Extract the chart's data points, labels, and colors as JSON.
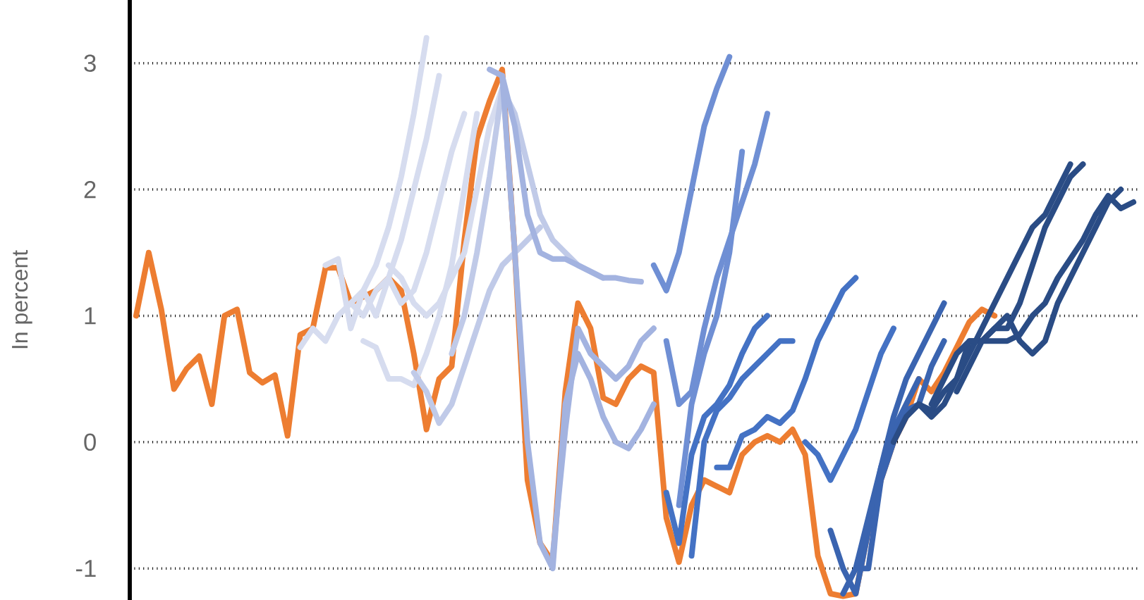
{
  "chart_data": {
    "type": "line",
    "ylabel": "In percent",
    "grid": "y",
    "tick_labels": "y",
    "ylim": [
      -1.25,
      3.5
    ],
    "yticks": [
      -1,
      0,
      1,
      2,
      3
    ],
    "categories": [
      null,
      null,
      null,
      null,
      null,
      null,
      null,
      null,
      null,
      null,
      null,
      null,
      null,
      null,
      null,
      null,
      null,
      null,
      null,
      null,
      null,
      null,
      null,
      null,
      null,
      null,
      null,
      null,
      null,
      null,
      null,
      null,
      null,
      null,
      null,
      null,
      null,
      null,
      null,
      null,
      null,
      null,
      null,
      null,
      null,
      null,
      null,
      null,
      null,
      null,
      null,
      null,
      null,
      null,
      null,
      null,
      null,
      null,
      null,
      null,
      null,
      null,
      null,
      null,
      null,
      null,
      null,
      null,
      null,
      null,
      null,
      null,
      null,
      null,
      null,
      null,
      null,
      null,
      null,
      null
    ],
    "series": [
      {
        "color": "#ed7d31",
        "values": [
          1.0,
          1.5,
          1.05,
          0.42,
          0.58,
          0.68,
          0.3,
          1.0,
          1.05,
          0.55,
          0.47,
          0.53,
          0.05,
          0.85,
          0.9,
          1.38,
          1.38,
          1.1,
          1.15,
          1.2,
          1.3,
          1.2,
          0.7,
          0.1,
          0.5,
          0.6,
          1.6,
          2.4,
          2.7,
          2.95,
          1.5,
          -0.3,
          -0.8,
          -0.95,
          0.4,
          1.1,
          0.9,
          0.35,
          0.3,
          0.5,
          0.6,
          0.55,
          -0.6,
          -0.95,
          -0.5,
          -0.3,
          -0.35,
          -0.4,
          -0.1,
          0.0,
          0.05,
          0.0,
          0.1,
          -0.1,
          -0.9,
          -1.2,
          -1.22,
          -1.2,
          -0.7,
          -0.3,
          0.0,
          0.2,
          0.5,
          0.4,
          0.55,
          0.75,
          0.95,
          1.05,
          1.0,
          null,
          null,
          null,
          null,
          null,
          null,
          null,
          null,
          null,
          null,
          null
        ]
      },
      {
        "color": "#d6dcef",
        "values": [
          null,
          null,
          null,
          null,
          null,
          null,
          null,
          null,
          null,
          null,
          null,
          null,
          null,
          0.75,
          0.9,
          0.8,
          1.0,
          1.1,
          1.2,
          1.4,
          1.7,
          2.1,
          2.6,
          3.2,
          null,
          null,
          null,
          null,
          null,
          null,
          null,
          null,
          null,
          null,
          null,
          null,
          null,
          null,
          null,
          null,
          null,
          null,
          null,
          null,
          null,
          null,
          null,
          null,
          null,
          null,
          null,
          null,
          null,
          null,
          null,
          null,
          null,
          null,
          null,
          null,
          null,
          null,
          null,
          null,
          null,
          null,
          null,
          null,
          null,
          null,
          null,
          null,
          null,
          null,
          null,
          null,
          null,
          null,
          null,
          null
        ]
      },
      {
        "color": "#d6dcef",
        "values": [
          null,
          null,
          null,
          null,
          null,
          null,
          null,
          null,
          null,
          null,
          null,
          null,
          null,
          null,
          null,
          1.4,
          1.45,
          0.9,
          1.2,
          1.0,
          1.3,
          1.6,
          2.0,
          2.4,
          2.9,
          null,
          null,
          null,
          null,
          null,
          null,
          null,
          null,
          null,
          null,
          null,
          null,
          null,
          null,
          null,
          null,
          null,
          null,
          null,
          null,
          null,
          null,
          null,
          null,
          null,
          null,
          null,
          null,
          null,
          null,
          null,
          null,
          null,
          null,
          null,
          null,
          null,
          null,
          null,
          null,
          null,
          null,
          null,
          null,
          null,
          null,
          null,
          null,
          null,
          null,
          null,
          null,
          null,
          null,
          null
        ]
      },
      {
        "color": "#d6dcef",
        "values": [
          null,
          null,
          null,
          null,
          null,
          null,
          null,
          null,
          null,
          null,
          null,
          null,
          null,
          null,
          null,
          null,
          null,
          1.1,
          1.0,
          1.2,
          1.3,
          1.1,
          1.2,
          1.5,
          1.9,
          2.3,
          2.6,
          null,
          null,
          null,
          null,
          null,
          null,
          null,
          null,
          null,
          null,
          null,
          null,
          null,
          null,
          null,
          null,
          null,
          null,
          null,
          null,
          null,
          null,
          null,
          null,
          null,
          null,
          null,
          null,
          null,
          null,
          null,
          null,
          null,
          null,
          null,
          null,
          null,
          null,
          null,
          null,
          null,
          null,
          null,
          null,
          null,
          null,
          null,
          null,
          null,
          null,
          null,
          null,
          null
        ]
      },
      {
        "color": "#d6dcef",
        "values": [
          null,
          null,
          null,
          null,
          null,
          null,
          null,
          null,
          null,
          null,
          null,
          null,
          null,
          null,
          null,
          null,
          null,
          null,
          0.8,
          0.75,
          0.5,
          0.5,
          0.45,
          0.7,
          1.0,
          1.4,
          2.0,
          2.6,
          null,
          null,
          null,
          null,
          null,
          null,
          null,
          null,
          null,
          null,
          null,
          null,
          null,
          null,
          null,
          null,
          null,
          null,
          null,
          null,
          null,
          null,
          null,
          null,
          null,
          null,
          null,
          null,
          null,
          null,
          null,
          null,
          null,
          null,
          null,
          null,
          null,
          null,
          null,
          null,
          null,
          null,
          null,
          null,
          null,
          null,
          null,
          null,
          null,
          null,
          null,
          null
        ]
      },
      {
        "color": "#d6dcef",
        "values": [
          null,
          null,
          null,
          null,
          null,
          null,
          null,
          null,
          null,
          null,
          null,
          null,
          null,
          null,
          null,
          null,
          null,
          null,
          null,
          null,
          1.4,
          1.3,
          1.1,
          1.0,
          1.1,
          1.3,
          1.5,
          2.0,
          2.5,
          2.8,
          null,
          null,
          null,
          null,
          null,
          null,
          null,
          null,
          null,
          null,
          null,
          null,
          null,
          null,
          null,
          null,
          null,
          null,
          null,
          null,
          null,
          null,
          null,
          null,
          null,
          null,
          null,
          null,
          null,
          null,
          null,
          null,
          null,
          null,
          null,
          null,
          null,
          null,
          null,
          null,
          null,
          null,
          null,
          null,
          null,
          null,
          null,
          null,
          null,
          null
        ]
      },
      {
        "color": "#c0cae8",
        "values": [
          null,
          null,
          null,
          null,
          null,
          null,
          null,
          null,
          null,
          null,
          null,
          null,
          null,
          null,
          null,
          null,
          null,
          null,
          null,
          null,
          null,
          null,
          0.55,
          0.4,
          0.15,
          0.3,
          0.6,
          0.9,
          1.2,
          1.4,
          1.5,
          1.6,
          1.7,
          null,
          null,
          null,
          null,
          null,
          null,
          null,
          null,
          null,
          null,
          null,
          null,
          null,
          null,
          null,
          null,
          null,
          null,
          null,
          null,
          null,
          null,
          null,
          null,
          null,
          null,
          null,
          null,
          null,
          null,
          null,
          null,
          null,
          null,
          null,
          null,
          null,
          null,
          null,
          null,
          null,
          null,
          null,
          null,
          null,
          null,
          null
        ]
      },
      {
        "color": "#c0cae8",
        "values": [
          null,
          null,
          null,
          null,
          null,
          null,
          null,
          null,
          null,
          null,
          null,
          null,
          null,
          null,
          null,
          null,
          null,
          null,
          null,
          null,
          null,
          null,
          null,
          null,
          null,
          0.7,
          1.0,
          1.5,
          2.1,
          2.8,
          2.6,
          2.2,
          1.8,
          1.6,
          1.5,
          1.4,
          1.35,
          1.3,
          null,
          null,
          null,
          null,
          null,
          null,
          null,
          null,
          null,
          null,
          null,
          null,
          null,
          null,
          null,
          null,
          null,
          null,
          null,
          null,
          null,
          null,
          null,
          null,
          null,
          null,
          null,
          null,
          null,
          null,
          null,
          null,
          null,
          null,
          null,
          null,
          null,
          null,
          null,
          null,
          null,
          null
        ]
      },
      {
        "color": "#a3b3e0",
        "values": [
          null,
          null,
          null,
          null,
          null,
          null,
          null,
          null,
          null,
          null,
          null,
          null,
          null,
          null,
          null,
          null,
          null,
          null,
          null,
          null,
          null,
          null,
          null,
          null,
          null,
          null,
          null,
          null,
          2.95,
          2.9,
          2.5,
          1.8,
          1.5,
          1.45,
          1.45,
          1.4,
          1.35,
          1.3,
          1.3,
          1.28,
          1.27,
          null,
          null,
          null,
          null,
          null,
          null,
          null,
          null,
          null,
          null,
          null,
          null,
          null,
          null,
          null,
          null,
          null,
          null,
          null,
          null,
          null,
          null,
          null,
          null,
          null,
          null,
          null,
          null,
          null,
          null,
          null,
          null,
          null,
          null,
          null,
          null,
          null,
          null,
          null
        ]
      },
      {
        "color": "#a3b3e0",
        "values": [
          null,
          null,
          null,
          null,
          null,
          null,
          null,
          null,
          null,
          null,
          null,
          null,
          null,
          null,
          null,
          null,
          null,
          null,
          null,
          null,
          null,
          null,
          null,
          null,
          null,
          null,
          null,
          null,
          null,
          2.9,
          1.5,
          0.0,
          -0.8,
          -1.0,
          0.3,
          0.7,
          0.5,
          0.2,
          0.0,
          -0.05,
          0.1,
          0.3,
          null,
          null,
          null,
          null,
          null,
          null,
          null,
          null,
          null,
          null,
          null,
          null,
          null,
          null,
          null,
          null,
          null,
          null,
          null,
          null,
          null,
          null,
          null,
          null,
          null,
          null,
          null,
          null,
          null,
          null,
          null,
          null,
          null,
          null,
          null,
          null,
          null,
          null
        ]
      },
      {
        "color": "#a3b3e0",
        "values": [
          null,
          null,
          null,
          null,
          null,
          null,
          null,
          null,
          null,
          null,
          null,
          null,
          null,
          null,
          null,
          null,
          null,
          null,
          null,
          null,
          null,
          null,
          null,
          null,
          null,
          null,
          null,
          null,
          null,
          null,
          null,
          null,
          null,
          -0.9,
          0.1,
          0.9,
          0.7,
          0.6,
          0.5,
          0.6,
          0.8,
          0.9,
          null,
          null,
          null,
          null,
          null,
          null,
          null,
          null,
          null,
          null,
          null,
          null,
          null,
          null,
          null,
          null,
          null,
          null,
          null,
          null,
          null,
          null,
          null,
          null,
          null,
          null,
          null,
          null,
          null,
          null,
          null,
          null,
          null,
          null,
          null,
          null,
          null,
          null
        ]
      },
      {
        "color": "#6f8fd4",
        "values": [
          null,
          null,
          null,
          null,
          null,
          null,
          null,
          null,
          null,
          null,
          null,
          null,
          null,
          null,
          null,
          null,
          null,
          null,
          null,
          null,
          null,
          null,
          null,
          null,
          null,
          null,
          null,
          null,
          null,
          null,
          null,
          null,
          null,
          null,
          null,
          null,
          null,
          null,
          null,
          null,
          null,
          1.4,
          1.2,
          1.5,
          2.0,
          2.5,
          2.8,
          3.05,
          null,
          null,
          null,
          null,
          null,
          null,
          null,
          null,
          null,
          null,
          null,
          null,
          null,
          null,
          null,
          null,
          null,
          null,
          null,
          null,
          null,
          null,
          null,
          null,
          null,
          null,
          null,
          null,
          null,
          null,
          null,
          null
        ]
      },
      {
        "color": "#6f8fd4",
        "values": [
          null,
          null,
          null,
          null,
          null,
          null,
          null,
          null,
          null,
          null,
          null,
          null,
          null,
          null,
          null,
          null,
          null,
          null,
          null,
          null,
          null,
          null,
          null,
          null,
          null,
          null,
          null,
          null,
          null,
          null,
          null,
          null,
          null,
          null,
          null,
          null,
          null,
          null,
          null,
          null,
          null,
          null,
          0.8,
          0.3,
          0.4,
          0.9,
          1.3,
          1.6,
          1.9,
          2.2,
          2.6,
          null,
          null,
          null,
          null,
          null,
          null,
          null,
          null,
          null,
          null,
          null,
          null,
          null,
          null,
          null,
          null,
          null,
          null,
          null,
          null,
          null,
          null,
          null,
          null,
          null,
          null,
          null,
          null,
          null
        ]
      },
      {
        "color": "#6f8fd4",
        "values": [
          null,
          null,
          null,
          null,
          null,
          null,
          null,
          null,
          null,
          null,
          null,
          null,
          null,
          null,
          null,
          null,
          null,
          null,
          null,
          null,
          null,
          null,
          null,
          null,
          null,
          null,
          null,
          null,
          null,
          null,
          null,
          null,
          null,
          null,
          null,
          null,
          null,
          null,
          null,
          null,
          null,
          null,
          null,
          -0.5,
          0.3,
          0.7,
          1.0,
          1.5,
          2.3,
          null,
          null,
          null,
          null,
          null,
          null,
          null,
          null,
          null,
          null,
          null,
          null,
          null,
          null,
          null,
          null,
          null,
          null,
          null,
          null,
          null,
          null,
          null,
          null,
          null,
          null,
          null,
          null,
          null,
          null,
          null
        ]
      },
      {
        "color": "#4472c4",
        "values": [
          null,
          null,
          null,
          null,
          null,
          null,
          null,
          null,
          null,
          null,
          null,
          null,
          null,
          null,
          null,
          null,
          null,
          null,
          null,
          null,
          null,
          null,
          null,
          null,
          null,
          null,
          null,
          null,
          null,
          null,
          null,
          null,
          null,
          null,
          null,
          null,
          null,
          null,
          null,
          null,
          null,
          null,
          -0.4,
          -0.8,
          -0.1,
          0.2,
          0.3,
          0.45,
          0.7,
          0.9,
          1.0,
          null,
          null,
          null,
          null,
          null,
          null,
          null,
          null,
          null,
          null,
          null,
          null,
          null,
          null,
          null,
          null,
          null,
          null,
          null,
          null,
          null,
          null,
          null,
          null,
          null,
          null,
          null,
          null,
          null
        ]
      },
      {
        "color": "#4472c4",
        "values": [
          null,
          null,
          null,
          null,
          null,
          null,
          null,
          null,
          null,
          null,
          null,
          null,
          null,
          null,
          null,
          null,
          null,
          null,
          null,
          null,
          null,
          null,
          null,
          null,
          null,
          null,
          null,
          null,
          null,
          null,
          null,
          null,
          null,
          null,
          null,
          null,
          null,
          null,
          null,
          null,
          null,
          null,
          null,
          null,
          -0.9,
          0.0,
          0.25,
          0.35,
          0.5,
          0.6,
          0.7,
          0.8,
          0.8,
          null,
          null,
          null,
          null,
          null,
          null,
          null,
          null,
          null,
          null,
          null,
          null,
          null,
          null,
          null,
          null,
          null,
          null,
          null,
          null,
          null,
          null,
          null,
          null,
          null,
          null,
          null
        ]
      },
      {
        "color": "#4472c4",
        "values": [
          null,
          null,
          null,
          null,
          null,
          null,
          null,
          null,
          null,
          null,
          null,
          null,
          null,
          null,
          null,
          null,
          null,
          null,
          null,
          null,
          null,
          null,
          null,
          null,
          null,
          null,
          null,
          null,
          null,
          null,
          null,
          null,
          null,
          null,
          null,
          null,
          null,
          null,
          null,
          null,
          null,
          null,
          null,
          null,
          null,
          null,
          -0.2,
          -0.2,
          0.05,
          0.1,
          0.2,
          0.15,
          0.25,
          0.5,
          0.8,
          1.0,
          1.2,
          1.3,
          null,
          null,
          null,
          null,
          null,
          null,
          null,
          null,
          null,
          null,
          null,
          null,
          null,
          null,
          null,
          null,
          null,
          null,
          null,
          null,
          null,
          null
        ]
      },
      {
        "color": "#4472c4",
        "values": [
          null,
          null,
          null,
          null,
          null,
          null,
          null,
          null,
          null,
          null,
          null,
          null,
          null,
          null,
          null,
          null,
          null,
          null,
          null,
          null,
          null,
          null,
          null,
          null,
          null,
          null,
          null,
          null,
          null,
          null,
          null,
          null,
          null,
          null,
          null,
          null,
          null,
          null,
          null,
          null,
          null,
          null,
          null,
          null,
          null,
          null,
          null,
          null,
          null,
          null,
          null,
          null,
          null,
          0.0,
          -0.1,
          -0.3,
          -0.1,
          0.1,
          0.4,
          0.7,
          0.9,
          null,
          null,
          null,
          null,
          null,
          null,
          null,
          null,
          null,
          null,
          null,
          null,
          null,
          null,
          null,
          null,
          null,
          null,
          null
        ]
      },
      {
        "color": "#3a64b0",
        "values": [
          null,
          null,
          null,
          null,
          null,
          null,
          null,
          null,
          null,
          null,
          null,
          null,
          null,
          null,
          null,
          null,
          null,
          null,
          null,
          null,
          null,
          null,
          null,
          null,
          null,
          null,
          null,
          null,
          null,
          null,
          null,
          null,
          null,
          null,
          null,
          null,
          null,
          null,
          null,
          null,
          null,
          null,
          null,
          null,
          null,
          null,
          null,
          null,
          null,
          null,
          null,
          null,
          null,
          null,
          null,
          -0.7,
          -1.0,
          -1.2,
          -0.7,
          -0.2,
          0.1,
          0.3,
          0.5,
          null,
          null,
          null,
          null,
          null,
          null,
          null,
          null,
          null,
          null,
          null,
          null,
          null,
          null,
          null,
          null,
          null
        ]
      },
      {
        "color": "#3a64b0",
        "values": [
          null,
          null,
          null,
          null,
          null,
          null,
          null,
          null,
          null,
          null,
          null,
          null,
          null,
          null,
          null,
          null,
          null,
          null,
          null,
          null,
          null,
          null,
          null,
          null,
          null,
          null,
          null,
          null,
          null,
          null,
          null,
          null,
          null,
          null,
          null,
          null,
          null,
          null,
          null,
          null,
          null,
          null,
          null,
          null,
          null,
          null,
          null,
          null,
          null,
          null,
          null,
          null,
          null,
          null,
          null,
          null,
          -1.2,
          -1.0,
          -0.6,
          -0.2,
          0.2,
          0.5,
          0.7,
          0.9,
          1.1,
          null,
          null,
          null,
          null,
          null,
          null,
          null,
          null,
          null,
          null,
          null,
          null,
          null,
          null,
          null
        ]
      },
      {
        "color": "#3a64b0",
        "values": [
          null,
          null,
          null,
          null,
          null,
          null,
          null,
          null,
          null,
          null,
          null,
          null,
          null,
          null,
          null,
          null,
          null,
          null,
          null,
          null,
          null,
          null,
          null,
          null,
          null,
          null,
          null,
          null,
          null,
          null,
          null,
          null,
          null,
          null,
          null,
          null,
          null,
          null,
          null,
          null,
          null,
          null,
          null,
          null,
          null,
          null,
          null,
          null,
          null,
          null,
          null,
          null,
          null,
          null,
          null,
          null,
          null,
          -1.0,
          -1.0,
          -0.3,
          0.0,
          0.25,
          0.3,
          0.6,
          0.8,
          null,
          null,
          null,
          null,
          null,
          null,
          null,
          null,
          null,
          null,
          null,
          null,
          null,
          null,
          null
        ]
      },
      {
        "color": "#2a4c85",
        "values": [
          null,
          null,
          null,
          null,
          null,
          null,
          null,
          null,
          null,
          null,
          null,
          null,
          null,
          null,
          null,
          null,
          null,
          null,
          null,
          null,
          null,
          null,
          null,
          null,
          null,
          null,
          null,
          null,
          null,
          null,
          null,
          null,
          null,
          null,
          null,
          null,
          null,
          null,
          null,
          null,
          null,
          null,
          null,
          null,
          null,
          null,
          null,
          null,
          null,
          null,
          null,
          null,
          null,
          null,
          null,
          null,
          null,
          null,
          null,
          null,
          0.0,
          0.2,
          0.3,
          0.25,
          0.4,
          0.5,
          0.7,
          0.9,
          1.1,
          1.3,
          1.5,
          1.7,
          1.8,
          2.0,
          2.2,
          null,
          null,
          null,
          null,
          null
        ]
      },
      {
        "color": "#2a4c85",
        "values": [
          null,
          null,
          null,
          null,
          null,
          null,
          null,
          null,
          null,
          null,
          null,
          null,
          null,
          null,
          null,
          null,
          null,
          null,
          null,
          null,
          null,
          null,
          null,
          null,
          null,
          null,
          null,
          null,
          null,
          null,
          null,
          null,
          null,
          null,
          null,
          null,
          null,
          null,
          null,
          null,
          null,
          null,
          null,
          null,
          null,
          null,
          null,
          null,
          null,
          null,
          null,
          null,
          null,
          null,
          null,
          null,
          null,
          null,
          null,
          null,
          null,
          null,
          0.3,
          0.2,
          0.3,
          0.5,
          0.8,
          0.8,
          0.8,
          0.8,
          0.85,
          1.0,
          1.1,
          1.3,
          1.45,
          1.6,
          1.8,
          1.95,
          1.85,
          1.9
        ]
      },
      {
        "color": "#2a4c85",
        "values": [
          null,
          null,
          null,
          null,
          null,
          null,
          null,
          null,
          null,
          null,
          null,
          null,
          null,
          null,
          null,
          null,
          null,
          null,
          null,
          null,
          null,
          null,
          null,
          null,
          null,
          null,
          null,
          null,
          null,
          null,
          null,
          null,
          null,
          null,
          null,
          null,
          null,
          null,
          null,
          null,
          null,
          null,
          null,
          null,
          null,
          null,
          null,
          null,
          null,
          null,
          null,
          null,
          null,
          null,
          null,
          null,
          null,
          null,
          null,
          null,
          null,
          null,
          null,
          0.3,
          0.5,
          0.7,
          0.8,
          0.8,
          0.9,
          1.0,
          0.8,
          0.7,
          0.8,
          1.1,
          1.3,
          1.5,
          1.7,
          1.9,
          2.0,
          null
        ]
      },
      {
        "color": "#2a4c85",
        "values": [
          null,
          null,
          null,
          null,
          null,
          null,
          null,
          null,
          null,
          null,
          null,
          null,
          null,
          null,
          null,
          null,
          null,
          null,
          null,
          null,
          null,
          null,
          null,
          null,
          null,
          null,
          null,
          null,
          null,
          null,
          null,
          null,
          null,
          null,
          null,
          null,
          null,
          null,
          null,
          null,
          null,
          null,
          null,
          null,
          null,
          null,
          null,
          null,
          null,
          null,
          null,
          null,
          null,
          null,
          null,
          null,
          null,
          null,
          null,
          null,
          null,
          null,
          null,
          null,
          null,
          0.4,
          0.6,
          0.8,
          0.9,
          0.9,
          1.1,
          1.4,
          1.7,
          1.9,
          2.1,
          2.2,
          null,
          null,
          null,
          null
        ]
      }
    ]
  }
}
